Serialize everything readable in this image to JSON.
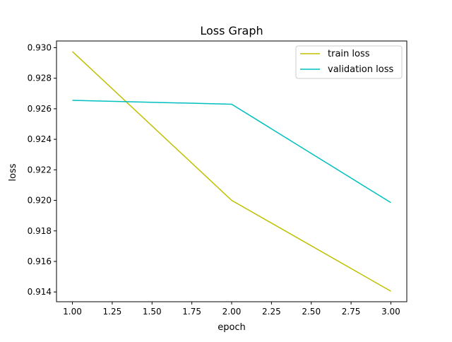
{
  "chart_data": {
    "type": "line",
    "title": "Loss Graph",
    "xlabel": "epoch",
    "ylabel": "loss",
    "x": [
      1.0,
      2.0,
      3.0
    ],
    "series": [
      {
        "name": "train loss",
        "color": "#bfbf00",
        "values": [
          0.92975,
          0.92,
          0.91405
        ]
      },
      {
        "name": "validation loss",
        "color": "#00bfbf",
        "values": [
          0.92655,
          0.9263,
          0.91985
        ]
      }
    ],
    "xlim": [
      0.9,
      3.1
    ],
    "ylim": [
      0.91336,
      0.93044
    ],
    "xticks": [
      1.0,
      1.25,
      1.5,
      1.75,
      2.0,
      2.25,
      2.5,
      2.75,
      3.0
    ],
    "xtick_labels": [
      "1.00",
      "1.25",
      "1.50",
      "1.75",
      "2.00",
      "2.25",
      "2.50",
      "2.75",
      "3.00"
    ],
    "yticks": [
      0.914,
      0.916,
      0.918,
      0.92,
      0.922,
      0.924,
      0.926,
      0.928,
      0.93
    ],
    "ytick_labels": [
      "0.914",
      "0.916",
      "0.918",
      "0.920",
      "0.922",
      "0.924",
      "0.926",
      "0.928",
      "0.930"
    ],
    "grid": false,
    "legend_position": "top-right"
  }
}
